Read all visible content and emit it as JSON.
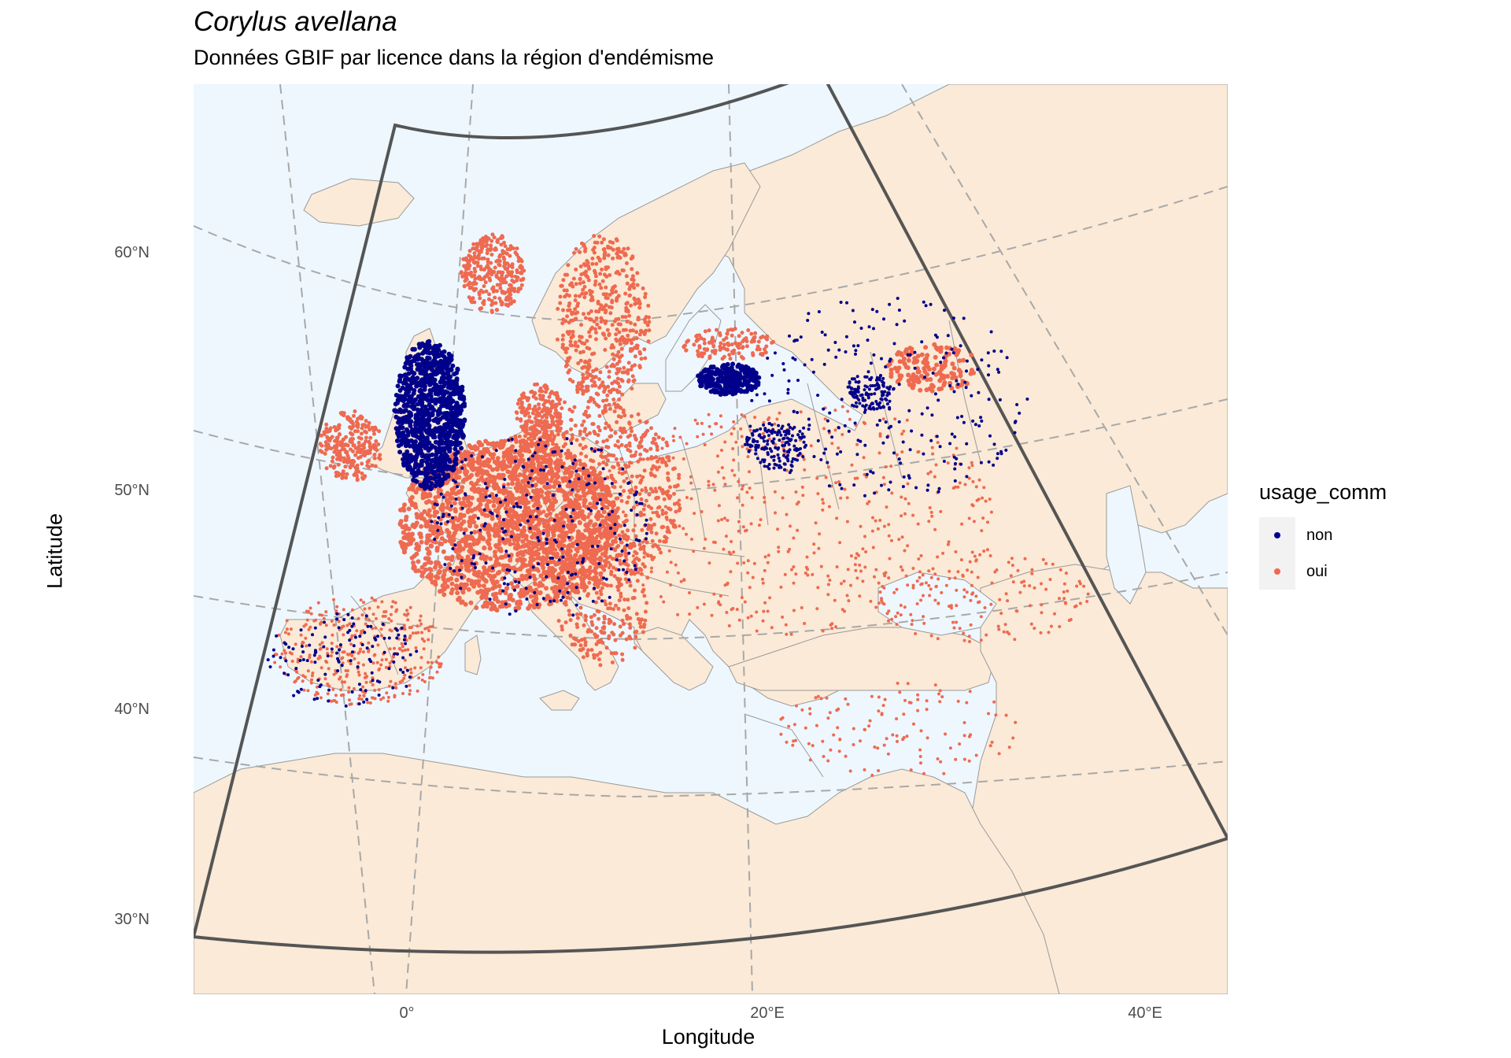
{
  "title": "Corylus avellana",
  "subtitle": "Données GBIF par licence dans la région d'endémisme",
  "axes": {
    "x_title": "Longitude",
    "y_title": "Latitude",
    "y_ticks": [
      "60°N",
      "50°N",
      "40°N",
      "30°N"
    ],
    "x_ticks": [
      "0°",
      "20°E",
      "40°E"
    ]
  },
  "legend": {
    "title": "usage_comm",
    "items": [
      {
        "label": "non",
        "color": "#00008B"
      },
      {
        "label": "oui",
        "color": "#EE6A50"
      }
    ]
  },
  "colors": {
    "sea": "#EEF7FE",
    "land": "#FAEAD7",
    "border": "#9a9a9a",
    "graticule": "#a8a8a8",
    "region_outline": "#555555",
    "non": "#00008B",
    "oui": "#EE6A50"
  }
}
